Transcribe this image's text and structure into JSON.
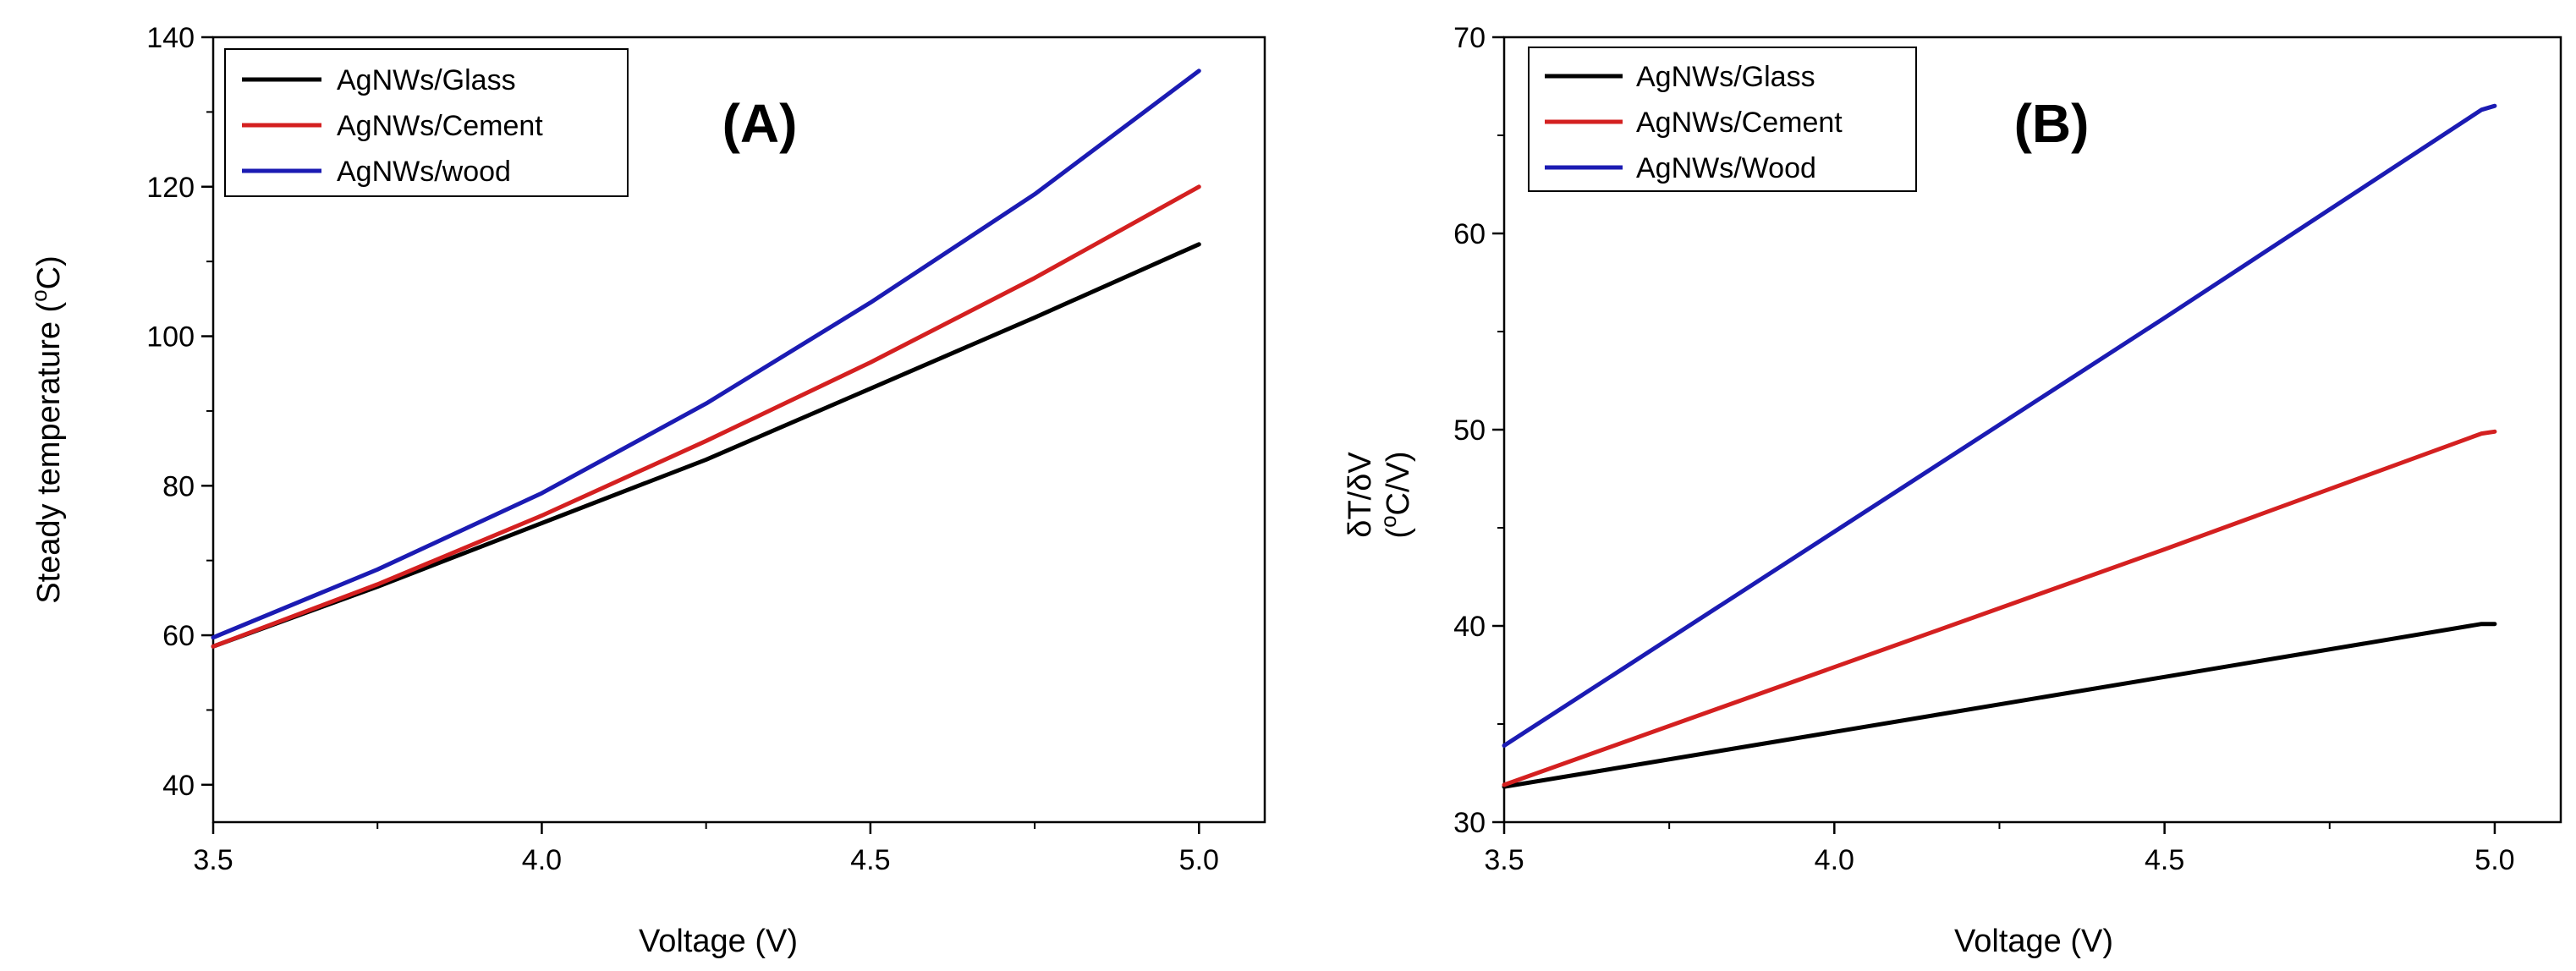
{
  "chart_data": [
    {
      "type": "line",
      "panel_label": "(A)",
      "xlabel": "Voltage (V)",
      "ylabel_main": "Steady temperature (",
      "ylabel_sup": "o",
      "ylabel_end": "C)",
      "xlim": [
        3.5,
        5.1
      ],
      "ylim": [
        35,
        140
      ],
      "xticks": [
        3.5,
        4.0,
        4.5,
        5.0
      ],
      "xtick_labels": [
        "3.5",
        "4.0",
        "4.5",
        "5.0"
      ],
      "yticks": [
        40,
        60,
        80,
        100,
        120,
        140
      ],
      "ytick_labels": [
        "40",
        "60",
        "80",
        "100",
        "120",
        "140"
      ],
      "legend_position": "top-left",
      "grid": false,
      "series": [
        {
          "name": "AgNWs/Glass",
          "color": "#000000",
          "x": [
            3.5,
            3.75,
            4.0,
            4.25,
            4.5,
            4.75,
            5.0
          ],
          "y": [
            58.5,
            66.5,
            75.0,
            83.5,
            93.0,
            102.5,
            112.3
          ]
        },
        {
          "name": "AgNWs/Cement",
          "color": "#d42020",
          "x": [
            3.5,
            3.75,
            4.0,
            4.25,
            4.5,
            4.75,
            5.0
          ],
          "y": [
            58.5,
            66.8,
            76.0,
            86.0,
            96.5,
            107.8,
            120.0
          ]
        },
        {
          "name": "AgNWs/wood",
          "color": "#1b1bb3",
          "x": [
            3.5,
            3.75,
            4.0,
            4.25,
            4.5,
            4.75,
            5.0
          ],
          "y": [
            59.7,
            68.8,
            79.0,
            91.0,
            104.5,
            119.0,
            135.5
          ]
        }
      ]
    },
    {
      "type": "line",
      "panel_label": "(B)",
      "xlabel": "Voltage (V)",
      "ylabel_line1": "δT/δV",
      "ylabel_line2_open": "(",
      "ylabel_line2_sup": "o",
      "ylabel_line2_end": "C/V)",
      "xlim": [
        3.5,
        5.1
      ],
      "ylim": [
        30,
        70
      ],
      "xticks": [
        3.5,
        4.0,
        4.5,
        5.0
      ],
      "xtick_labels": [
        "3.5",
        "4.0",
        "4.5",
        "5.0"
      ],
      "yticks": [
        30,
        40,
        50,
        60,
        70
      ],
      "ytick_labels": [
        "30",
        "40",
        "50",
        "60",
        "70"
      ],
      "legend_position": "top-left",
      "grid": false,
      "series": [
        {
          "name": "AgNWs/Glass",
          "color": "#000000",
          "x": [
            3.5,
            4.0,
            4.5,
            4.98,
            5.0
          ],
          "y": [
            31.8,
            34.6,
            37.4,
            40.1,
            40.1
          ]
        },
        {
          "name": "AgNWs/Cement",
          "color": "#d42020",
          "x": [
            3.5,
            4.0,
            4.5,
            4.98,
            5.0
          ],
          "y": [
            31.9,
            37.9,
            43.9,
            49.8,
            49.9
          ]
        },
        {
          "name": "AgNWs/Wood",
          "color": "#1b1bb3",
          "x": [
            3.5,
            4.0,
            4.5,
            4.98,
            5.0
          ],
          "y": [
            33.9,
            44.8,
            55.7,
            66.3,
            66.5
          ]
        }
      ]
    }
  ]
}
